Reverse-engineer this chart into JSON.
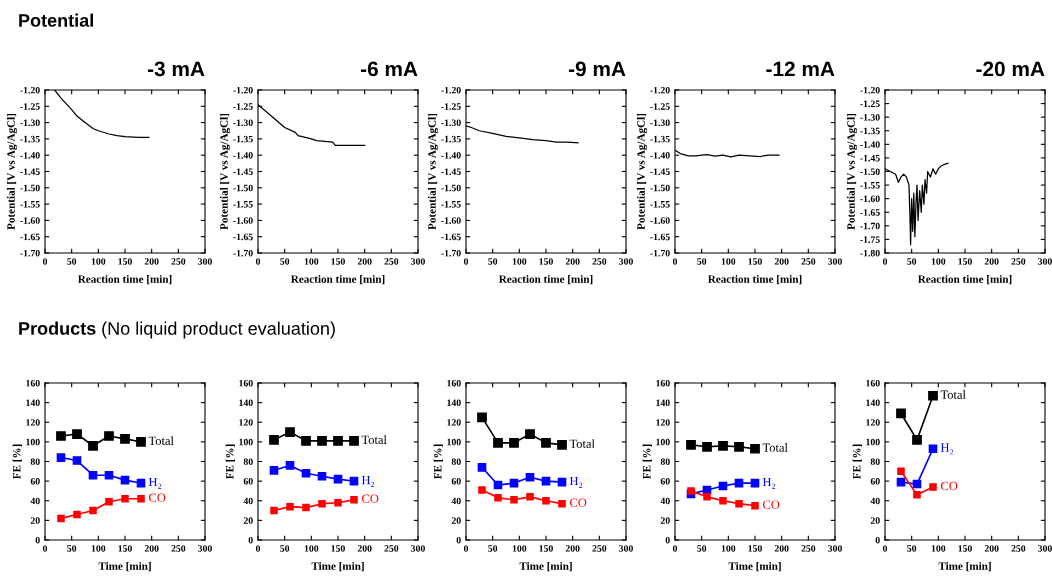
{
  "chart_data": [
    {
      "type": "line",
      "title": "-3 mA",
      "xlabel": "Reaction time [min]",
      "ylabel": "Potential [V vs Ag/AgCl]",
      "annotations": [
        "Potential"
      ],
      "xlim": [
        0,
        300
      ],
      "xticks": [
        0,
        50,
        100,
        150,
        200,
        250,
        300
      ],
      "ylim": [
        -1.7,
        -1.2
      ],
      "yticks": [
        {
          "value": -1.2,
          "label": "-1.20"
        },
        {
          "value": -1.25,
          "label": "-1.25"
        },
        {
          "value": -1.3,
          "label": "-1.30"
        },
        {
          "value": -1.35,
          "label": "-1.35"
        },
        {
          "value": -1.4,
          "label": "-1.40"
        },
        {
          "value": -1.45,
          "label": "-1.45"
        },
        {
          "value": -1.5,
          "label": "-1.50"
        },
        {
          "value": -1.55,
          "label": "-1.55"
        },
        {
          "value": -1.6,
          "label": "-1.60"
        },
        {
          "value": -1.65,
          "label": "-1.65"
        },
        {
          "value": -1.7,
          "label": "-1.70"
        }
      ],
      "marker": "none",
      "line_style": "solid",
      "grid": false,
      "legend": false,
      "series": [
        {
          "color": "#000000",
          "x": [
            18,
            30,
            50,
            60,
            75,
            90,
            100,
            120,
            135,
            150,
            175,
            195
          ],
          "values": [
            -1.2,
            -1.225,
            -1.26,
            -1.28,
            -1.3,
            -1.318,
            -1.325,
            -1.335,
            -1.34,
            -1.343,
            -1.345,
            -1.345
          ]
        }
      ]
    },
    {
      "type": "line",
      "title": "-6 mA",
      "xlabel": "Reaction time [min]",
      "ylabel": "Potential [V vs Ag/AgCl]",
      "xlim": [
        0,
        300
      ],
      "xticks": [
        0,
        50,
        100,
        150,
        200,
        250,
        300
      ],
      "ylim": [
        -1.7,
        -1.2
      ],
      "yticks": [
        {
          "value": -1.2,
          "label": "-1.20"
        },
        {
          "value": -1.25,
          "label": "-1.25"
        },
        {
          "value": -1.3,
          "label": "-1.30"
        },
        {
          "value": -1.35,
          "label": "-1.35"
        },
        {
          "value": -1.4,
          "label": "-1.40"
        },
        {
          "value": -1.45,
          "label": "-1.45"
        },
        {
          "value": -1.5,
          "label": "-1.50"
        },
        {
          "value": -1.55,
          "label": "-1.55"
        },
        {
          "value": -1.6,
          "label": "-1.60"
        },
        {
          "value": -1.65,
          "label": "-1.65"
        },
        {
          "value": -1.7,
          "label": "-1.70"
        }
      ],
      "marker": "none",
      "line_style": "solid",
      "grid": false,
      "legend": false,
      "series": [
        {
          "color": "#000000",
          "x": [
            0,
            25,
            50,
            70,
            75,
            100,
            110,
            140,
            145,
            175,
            200
          ],
          "values": [
            -1.245,
            -1.28,
            -1.315,
            -1.33,
            -1.34,
            -1.35,
            -1.355,
            -1.36,
            -1.37,
            -1.37,
            -1.37
          ]
        }
      ]
    },
    {
      "type": "line",
      "title": "-9 mA",
      "xlabel": "Reaction time [min]",
      "ylabel": "Potential [V vs Ag/AgCl]",
      "xlim": [
        0,
        300
      ],
      "xticks": [
        0,
        50,
        100,
        150,
        200,
        250,
        300
      ],
      "ylim": [
        -1.7,
        -1.2
      ],
      "yticks": [
        {
          "value": -1.2,
          "label": "-1.20"
        },
        {
          "value": -1.25,
          "label": "-1.25"
        },
        {
          "value": -1.3,
          "label": "-1.30"
        },
        {
          "value": -1.35,
          "label": "-1.35"
        },
        {
          "value": -1.4,
          "label": "-1.40"
        },
        {
          "value": -1.45,
          "label": "-1.45"
        },
        {
          "value": -1.5,
          "label": "-1.50"
        },
        {
          "value": -1.55,
          "label": "-1.55"
        },
        {
          "value": -1.6,
          "label": "-1.60"
        },
        {
          "value": -1.65,
          "label": "-1.65"
        },
        {
          "value": -1.7,
          "label": "-1.70"
        }
      ],
      "marker": "none",
      "line_style": "solid",
      "grid": false,
      "legend": false,
      "series": [
        {
          "color": "#000000",
          "x": [
            0,
            10,
            25,
            50,
            75,
            100,
            125,
            150,
            170,
            190,
            210
          ],
          "values": [
            -1.31,
            -1.315,
            -1.325,
            -1.333,
            -1.342,
            -1.347,
            -1.352,
            -1.355,
            -1.36,
            -1.36,
            -1.362
          ]
        }
      ]
    },
    {
      "type": "line",
      "title": "-12 mA",
      "xlabel": "Reaction time [min]",
      "ylabel": "Potential [V vs Ag/AgCl]",
      "xlim": [
        0,
        300
      ],
      "xticks": [
        0,
        50,
        100,
        150,
        200,
        250,
        300
      ],
      "ylim": [
        -1.7,
        -1.2
      ],
      "yticks": [
        {
          "value": -1.2,
          "label": "-1.20"
        },
        {
          "value": -1.25,
          "label": "-1.25"
        },
        {
          "value": -1.3,
          "label": "-1.30"
        },
        {
          "value": -1.35,
          "label": "-1.35"
        },
        {
          "value": -1.4,
          "label": "-1.40"
        },
        {
          "value": -1.45,
          "label": "-1.45"
        },
        {
          "value": -1.5,
          "label": "-1.50"
        },
        {
          "value": -1.55,
          "label": "-1.55"
        },
        {
          "value": -1.6,
          "label": "-1.60"
        },
        {
          "value": -1.65,
          "label": "-1.65"
        },
        {
          "value": -1.7,
          "label": "-1.70"
        }
      ],
      "marker": "none",
      "line_style": "solid",
      "grid": false,
      "legend": false,
      "series": [
        {
          "color": "#000000",
          "x": [
            0,
            10,
            25,
            40,
            50,
            60,
            75,
            90,
            105,
            120,
            140,
            160,
            175,
            195
          ],
          "values": [
            -1.385,
            -1.395,
            -1.402,
            -1.402,
            -1.4,
            -1.398,
            -1.403,
            -1.4,
            -1.405,
            -1.4,
            -1.402,
            -1.404,
            -1.4,
            -1.4
          ]
        }
      ]
    },
    {
      "type": "line",
      "title": "-20 mA",
      "xlabel": "Reaction time [min]",
      "ylabel": "Potential [V vs Ag/AgCl]",
      "xlim": [
        0,
        300
      ],
      "xticks": [
        0,
        50,
        100,
        150,
        200,
        250,
        300
      ],
      "ylim": [
        -1.8,
        -1.2
      ],
      "yticks": [
        {
          "value": -1.2,
          "label": "-1.20"
        },
        {
          "value": -1.25,
          "label": "-1.25"
        },
        {
          "value": -1.3,
          "label": "-1.30"
        },
        {
          "value": -1.35,
          "label": "-1.35"
        },
        {
          "value": -1.4,
          "label": "-1.40"
        },
        {
          "value": -1.45,
          "label": "-1.45"
        },
        {
          "value": -1.5,
          "label": "-1.50"
        },
        {
          "value": -1.55,
          "label": "-1.55"
        },
        {
          "value": -1.6,
          "label": "-1.60"
        },
        {
          "value": -1.65,
          "label": "-1.65"
        },
        {
          "value": -1.7,
          "label": "-1.70"
        },
        {
          "value": -1.75,
          "label": "-1.75"
        },
        {
          "value": -1.8,
          "label": "-1.80"
        }
      ],
      "marker": "none",
      "line_style": "solid",
      "grid": false,
      "legend": false,
      "series": [
        {
          "color": "#000000",
          "x": [
            0,
            10,
            20,
            25,
            30,
            35,
            40,
            45,
            47,
            48,
            50,
            52,
            54,
            56,
            58,
            60,
            62,
            65,
            68,
            70,
            73,
            75,
            78,
            80,
            85,
            90,
            95,
            100,
            105,
            110,
            118
          ],
          "values": [
            -1.49,
            -1.5,
            -1.51,
            -1.54,
            -1.52,
            -1.51,
            -1.52,
            -1.55,
            -1.68,
            -1.77,
            -1.6,
            -1.72,
            -1.58,
            -1.74,
            -1.62,
            -1.55,
            -1.68,
            -1.57,
            -1.65,
            -1.55,
            -1.62,
            -1.53,
            -1.58,
            -1.5,
            -1.52,
            -1.49,
            -1.51,
            -1.49,
            -1.48,
            -1.475,
            -1.47
          ]
        }
      ]
    },
    {
      "type": "line",
      "xlabel": "Time [min]",
      "ylabel": "FE [%]",
      "annotations": [
        "Products",
        "(No liquid product evaluation)"
      ],
      "xlim": [
        0,
        300
      ],
      "xticks": [
        0,
        50,
        100,
        150,
        200,
        250,
        300
      ],
      "ylim": [
        0,
        160
      ],
      "yticks": [
        0,
        20,
        40,
        60,
        80,
        100,
        120,
        140,
        160
      ],
      "x": [
        30,
        60,
        90,
        120,
        150,
        180
      ],
      "marker": "square",
      "line_style": "solid",
      "grid": false,
      "legend": "right",
      "series": [
        {
          "name": "Total",
          "color": "#000000",
          "values": [
            106,
            108,
            96,
            106,
            103,
            100
          ]
        },
        {
          "name": "H₂",
          "color": "#0000ff",
          "values": [
            84,
            81,
            66,
            66,
            61,
            58
          ]
        },
        {
          "name": "CO",
          "color": "#ff0000",
          "values": [
            22,
            26,
            30,
            39,
            42,
            42
          ]
        }
      ]
    },
    {
      "type": "line",
      "xlabel": "Time [min]",
      "ylabel": "FE [%]",
      "xlim": [
        0,
        300
      ],
      "xticks": [
        0,
        50,
        100,
        150,
        200,
        250,
        300
      ],
      "ylim": [
        0,
        160
      ],
      "yticks": [
        0,
        20,
        40,
        60,
        80,
        100,
        120,
        140,
        160
      ],
      "x": [
        30,
        60,
        90,
        120,
        150,
        180
      ],
      "marker": "square",
      "line_style": "solid",
      "grid": false,
      "legend": "right",
      "series": [
        {
          "name": "Total",
          "color": "#000000",
          "values": [
            102,
            110,
            101,
            101,
            101,
            101
          ]
        },
        {
          "name": "H₂",
          "color": "#0000ff",
          "values": [
            71,
            76,
            68,
            65,
            62,
            60
          ]
        },
        {
          "name": "CO",
          "color": "#ff0000",
          "values": [
            30,
            34,
            33,
            37,
            38,
            41
          ]
        }
      ]
    },
    {
      "type": "line",
      "xlabel": "Time [min]",
      "ylabel": "FE [%]",
      "xlim": [
        0,
        300
      ],
      "xticks": [
        0,
        50,
        100,
        150,
        200,
        250,
        300
      ],
      "ylim": [
        0,
        160
      ],
      "yticks": [
        0,
        20,
        40,
        60,
        80,
        100,
        120,
        140,
        160
      ],
      "x": [
        30,
        60,
        90,
        120,
        150,
        180
      ],
      "marker": "square",
      "line_style": "solid",
      "grid": false,
      "legend": "right",
      "series": [
        {
          "name": "Total",
          "color": "#000000",
          "values": [
            125,
            99,
            99,
            108,
            99,
            97
          ]
        },
        {
          "name": "H₂",
          "color": "#0000ff",
          "values": [
            74,
            56,
            58,
            64,
            60,
            59
          ]
        },
        {
          "name": "CO",
          "color": "#ff0000",
          "values": [
            51,
            43,
            41,
            44,
            40,
            37
          ]
        }
      ]
    },
    {
      "type": "line",
      "xlabel": "Time [min]",
      "ylabel": "FE [%]",
      "xlim": [
        0,
        300
      ],
      "xticks": [
        0,
        50,
        100,
        150,
        200,
        250,
        300
      ],
      "ylim": [
        0,
        160
      ],
      "yticks": [
        0,
        20,
        40,
        60,
        80,
        100,
        120,
        140,
        160
      ],
      "x": [
        30,
        60,
        90,
        120,
        150
      ],
      "marker": "square",
      "line_style": "solid",
      "grid": false,
      "legend": "right",
      "series": [
        {
          "name": "Total",
          "color": "#000000",
          "values": [
            97,
            95,
            96,
            95,
            93
          ]
        },
        {
          "name": "H₂",
          "color": "#0000ff",
          "values": [
            47,
            51,
            55,
            58,
            58
          ]
        },
        {
          "name": "CO",
          "color": "#ff0000",
          "values": [
            50,
            44,
            40,
            37,
            35
          ]
        }
      ]
    },
    {
      "type": "line",
      "xlabel": "Time [min]",
      "ylabel": "FE [%]",
      "xlim": [
        0,
        300
      ],
      "xticks": [
        0,
        50,
        100,
        150,
        200,
        250,
        300
      ],
      "ylim": [
        0,
        160
      ],
      "yticks": [
        0,
        20,
        40,
        60,
        80,
        100,
        120,
        140,
        160
      ],
      "x": [
        30,
        60,
        90
      ],
      "marker": "square",
      "line_style": "solid",
      "grid": false,
      "legend": "top",
      "series": [
        {
          "name": "Total",
          "color": "#000000",
          "values": [
            129,
            102,
            147
          ]
        },
        {
          "name": "H₂",
          "color": "#0000ff",
          "values": [
            59,
            57,
            93
          ]
        },
        {
          "name": "CO",
          "color": "#ff0000",
          "values": [
            70,
            46,
            54
          ]
        }
      ]
    }
  ]
}
